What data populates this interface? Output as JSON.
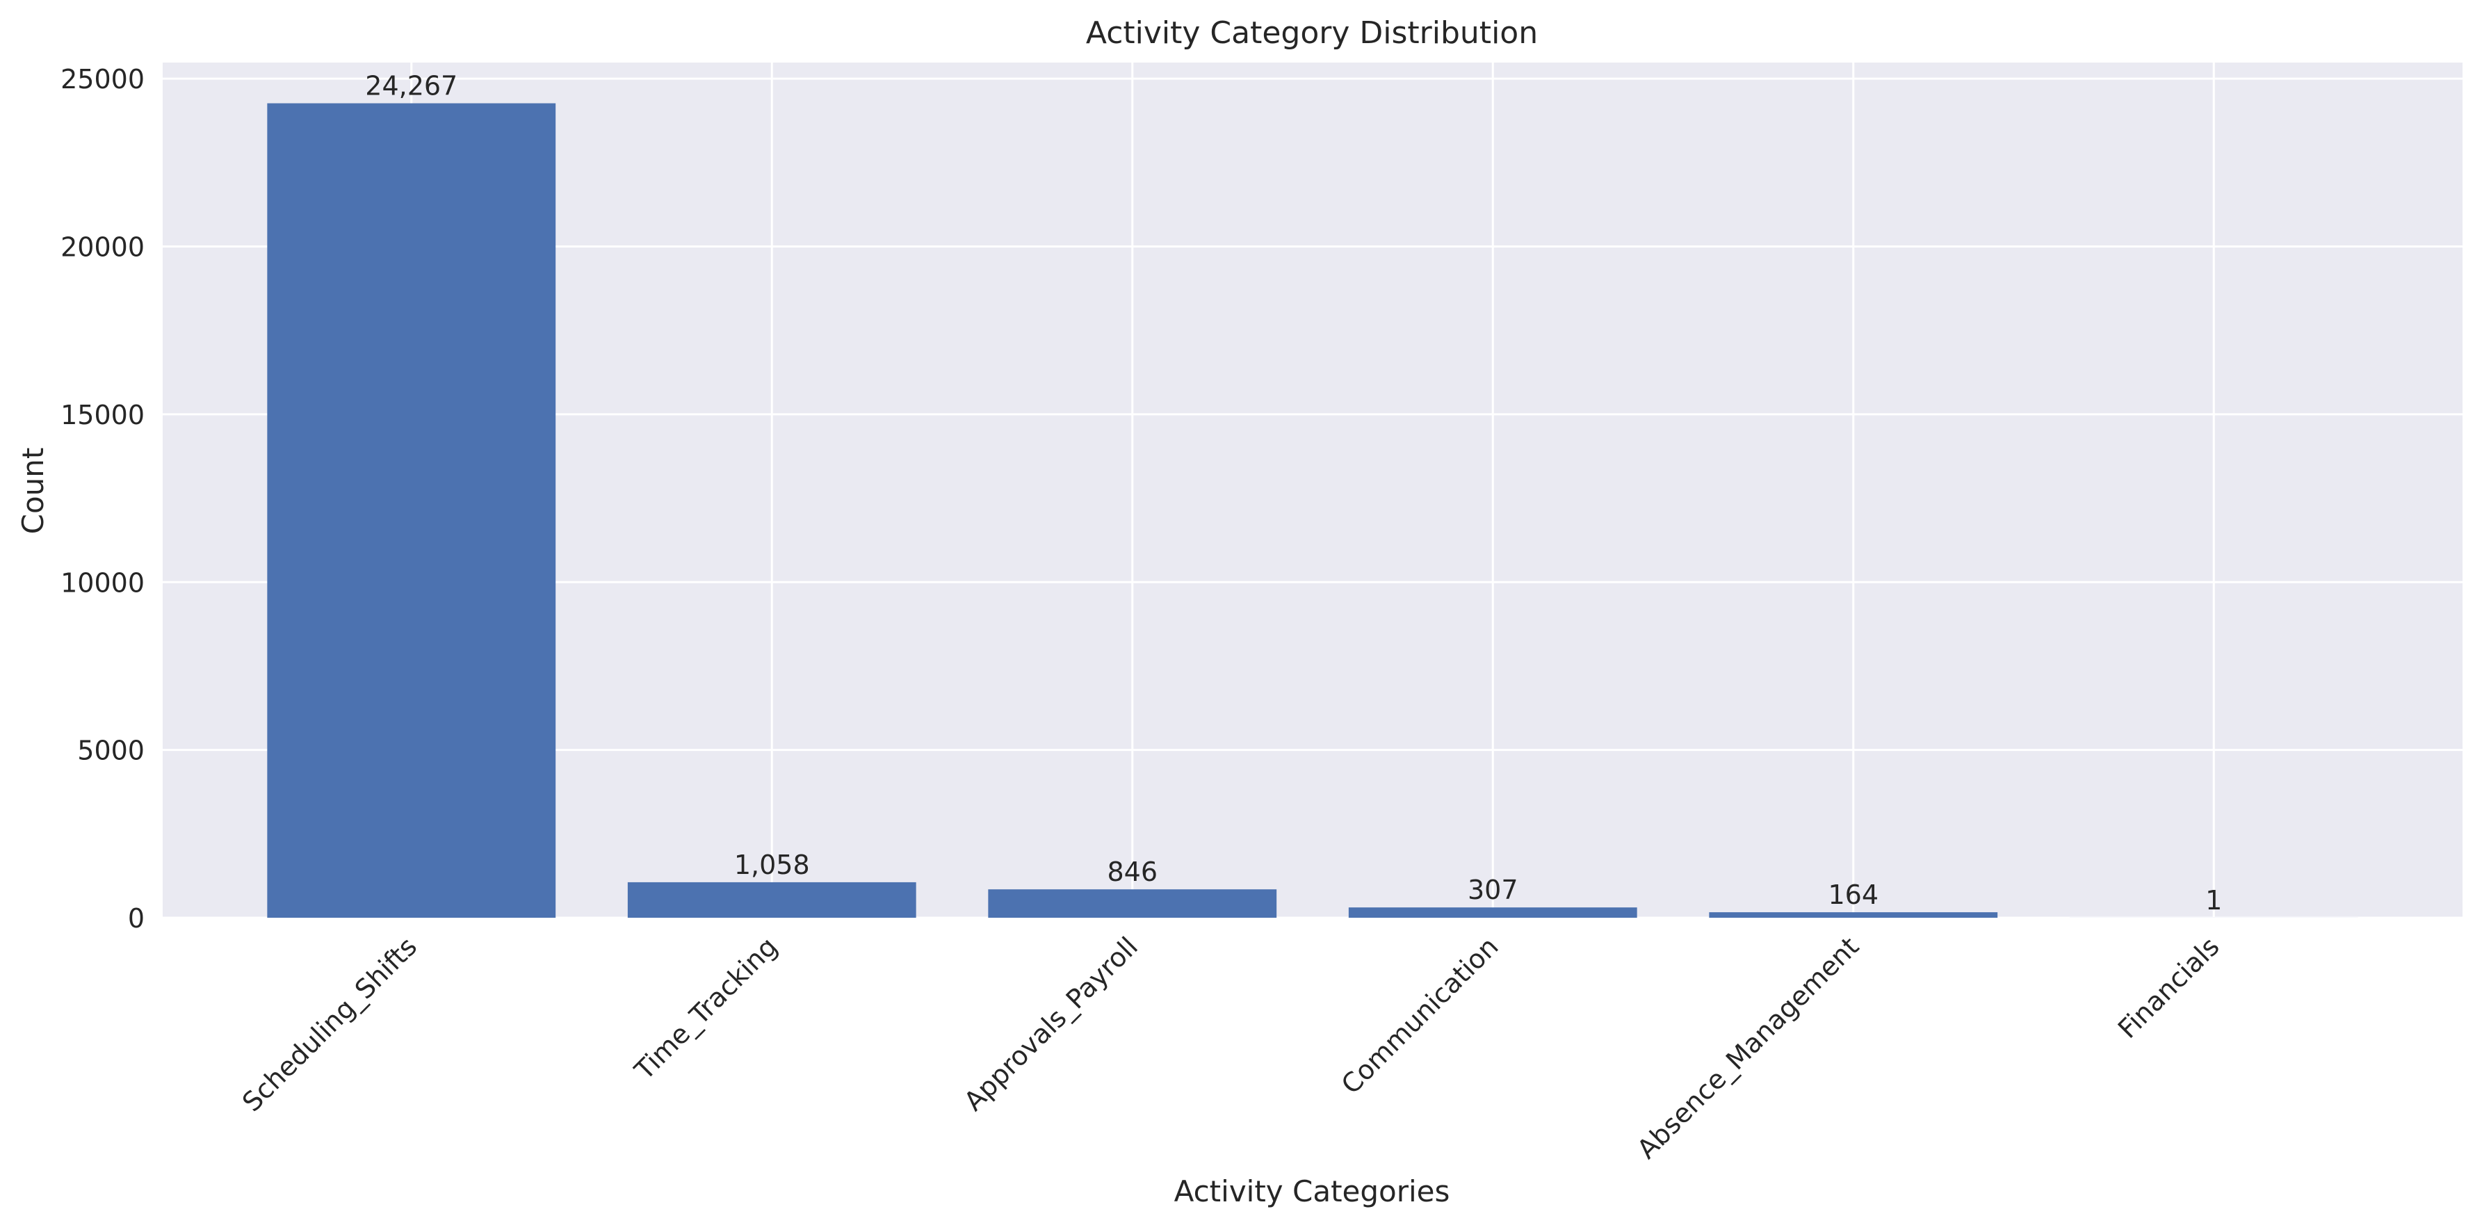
{
  "chart_data": {
    "type": "bar",
    "title": "Activity Category Distribution",
    "xlabel": "Activity Categories",
    "ylabel": "Count",
    "categories": [
      "Scheduling_Shifts",
      "Time_Tracking",
      "Approvals_Payroll",
      "Communication",
      "Absence_Management",
      "Financials"
    ],
    "values": [
      24267,
      1058,
      846,
      307,
      164,
      1
    ],
    "value_labels": [
      "24,267",
      "1,058",
      "846",
      "307",
      "164",
      "1"
    ],
    "y_ticks": [
      0,
      5000,
      10000,
      15000,
      20000,
      25000
    ],
    "y_tick_labels": [
      "0",
      "5000",
      "10000",
      "15000",
      "20000",
      "25000"
    ],
    "ylim": [
      0,
      25480
    ],
    "grid": true,
    "legend": "none",
    "colors": {
      "bar": "#4c72b0",
      "plot_background": "#eaeaf2",
      "grid": "#ffffff",
      "text": "#262626"
    }
  }
}
